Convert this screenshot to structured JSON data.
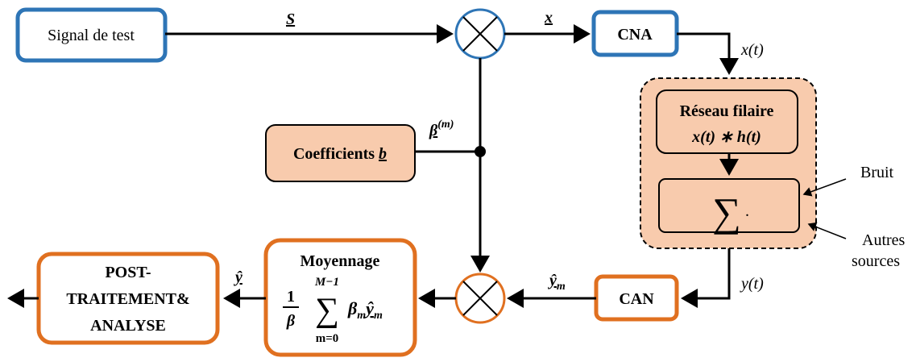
{
  "signal": {
    "label": "Signal de test"
  },
  "edges": {
    "s": "S",
    "x": "x",
    "xt": "x(t)",
    "yt": "y(t)",
    "beta": "β",
    "beta_sup": "(m)",
    "ym": "ŷ",
    "ym_sub": "m",
    "y": "ŷ"
  },
  "cna": {
    "label": "CNA"
  },
  "can": {
    "label": "CAN"
  },
  "reseau": {
    "title": "Réseau filaire",
    "formula": "x(t) ∗ h(t)"
  },
  "sum": {
    "symbol": "∑",
    "dot": "."
  },
  "bruit": {
    "label": "Bruit"
  },
  "autres": {
    "lines": [
      "Autres",
      "sources"
    ]
  },
  "coefficients": {
    "label": "Coefficients",
    "var": "b"
  },
  "moyennage": {
    "title": "Moyennage",
    "num": "1",
    "den": "β",
    "upper": "M−1",
    "lower": "m=0",
    "sigma": "∑",
    "term": "β",
    "term_sub": "m",
    "term2": "ŷ",
    "term2_sub": "m"
  },
  "post": {
    "lines": [
      "POST-",
      "TRAITEMENT&",
      "ANALYSE"
    ]
  }
}
